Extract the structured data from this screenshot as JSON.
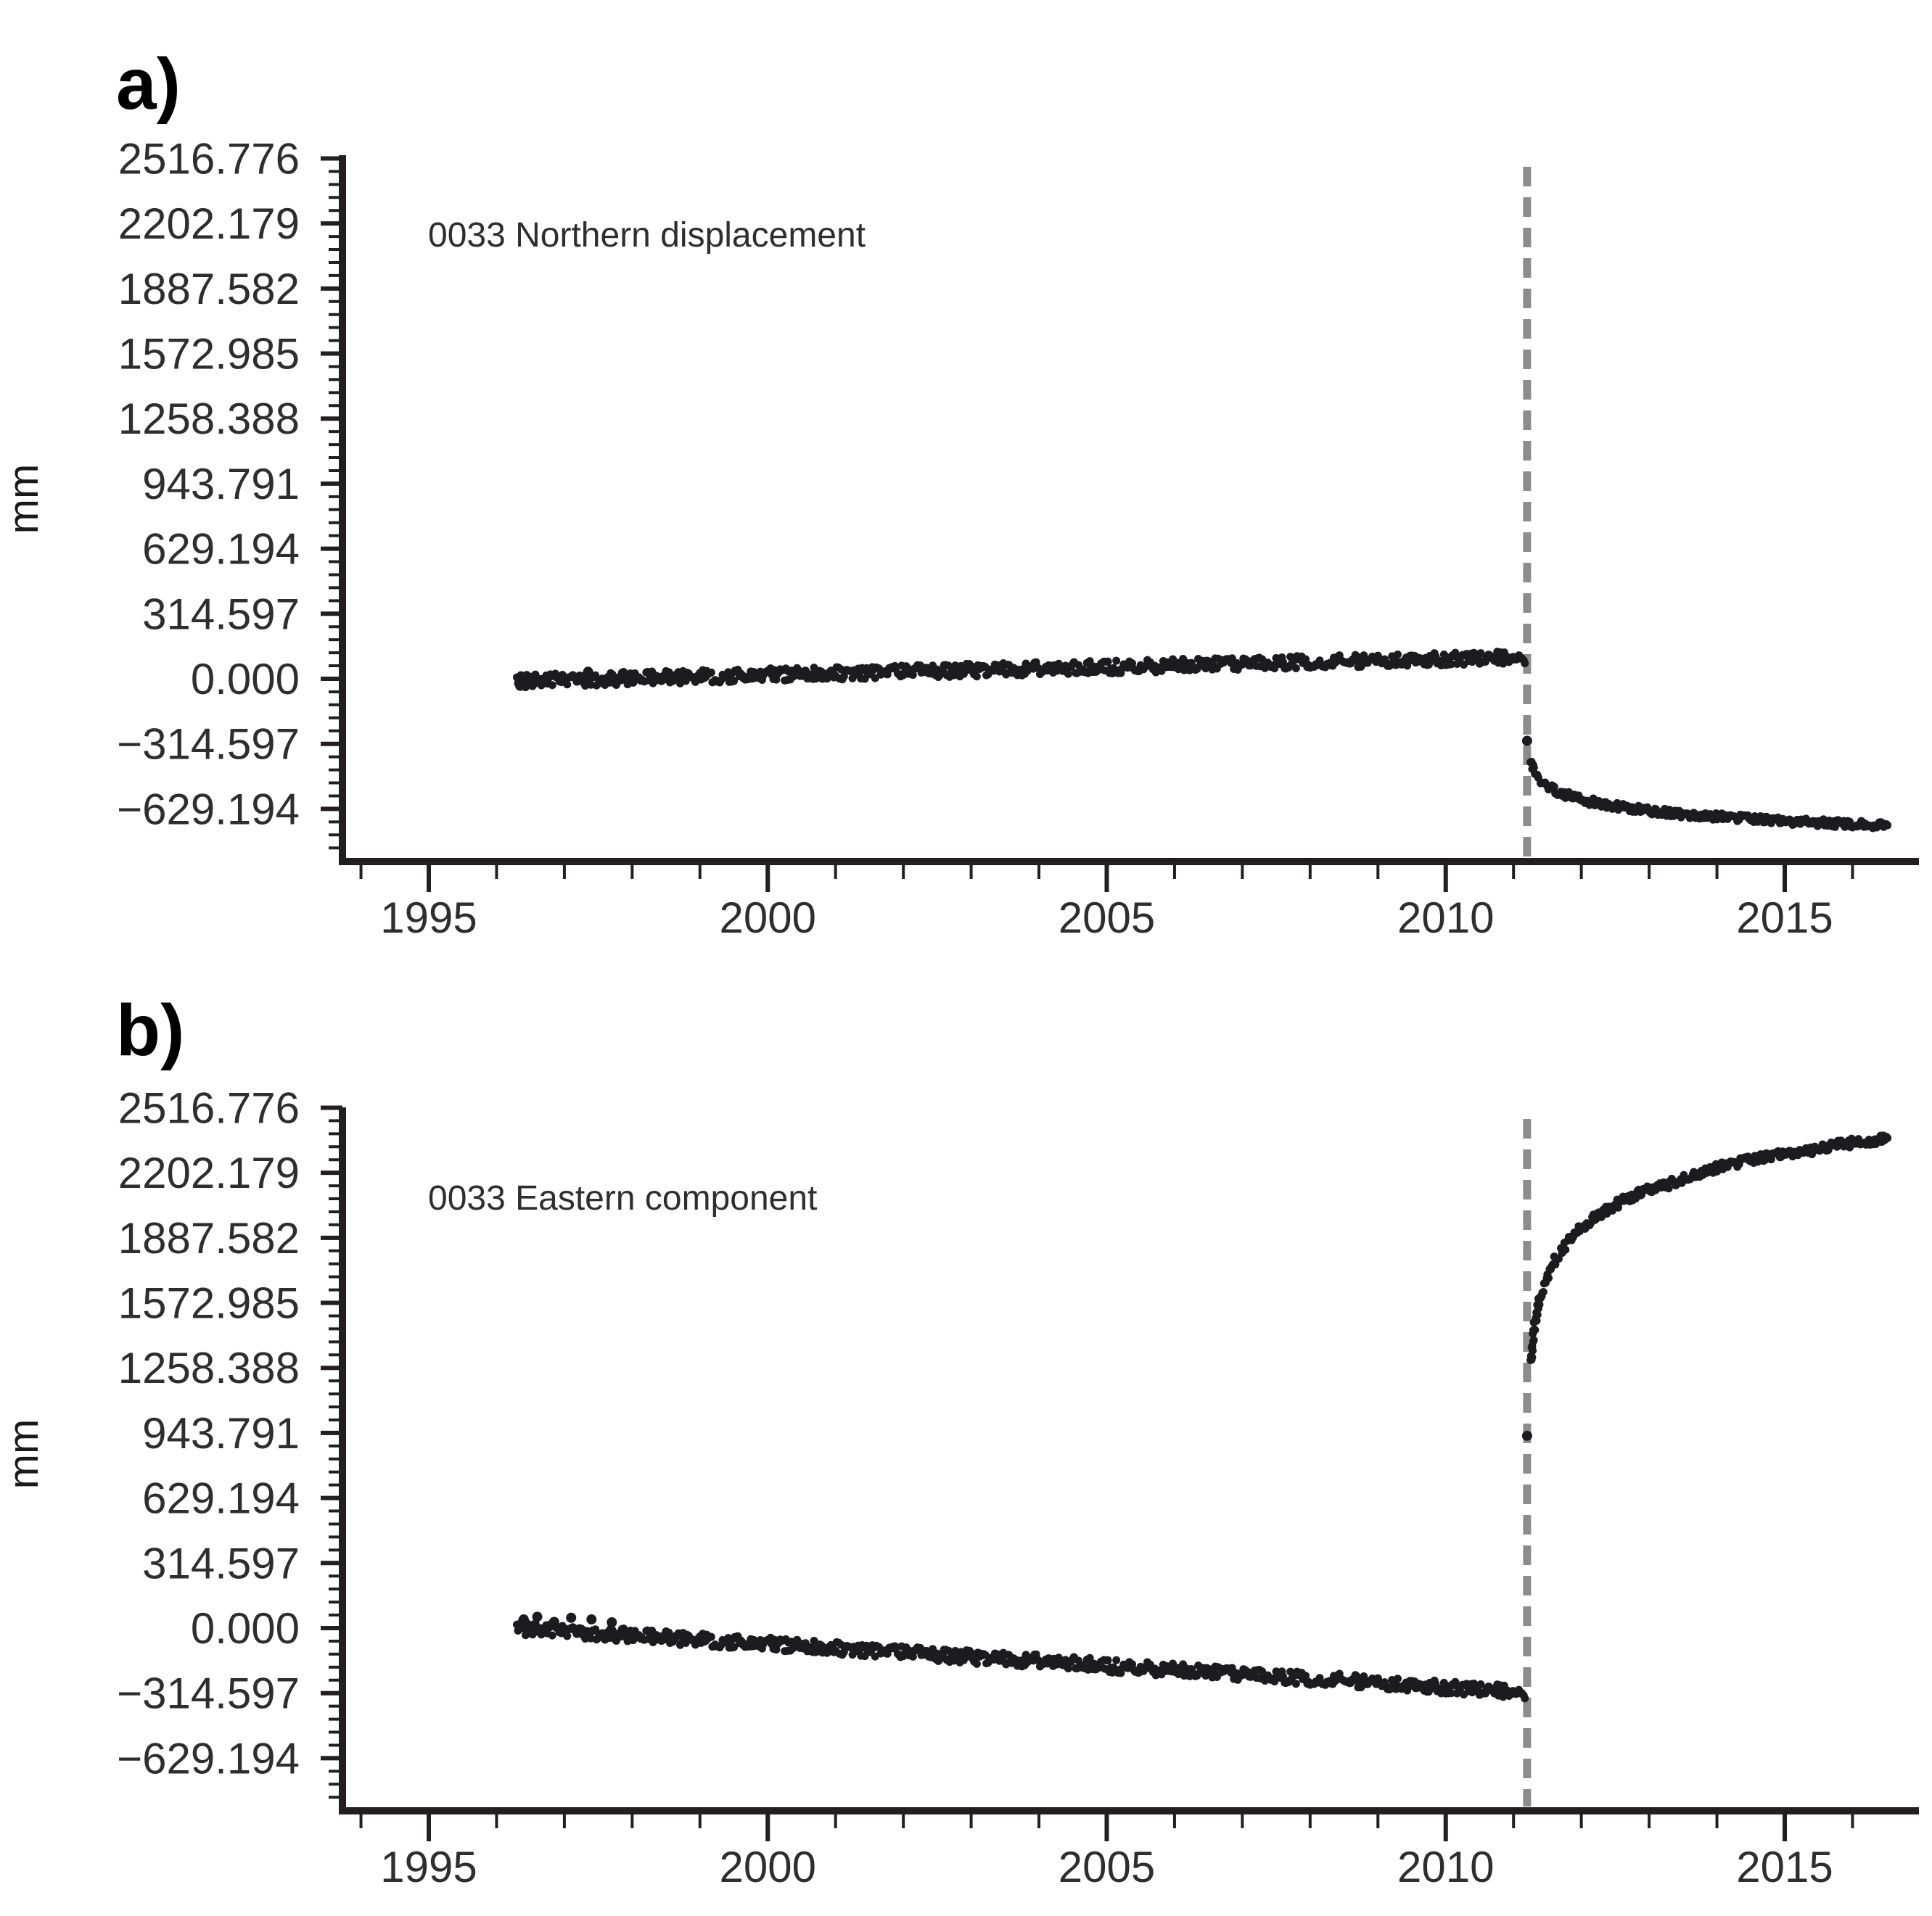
{
  "figure": {
    "background": "#ffffff"
  },
  "chart_data": [
    {
      "panel_label": "a)",
      "type": "scatter",
      "title": "0033 Northern displacement",
      "ylabel": "mm",
      "xlabel": "",
      "marker": "filled-circle",
      "point_color": "#1c1b1f",
      "axis_color": "#231f20",
      "text_color": "#2e2e2e",
      "grid": false,
      "legend": false,
      "xlim": [
        1993.6,
        2017.0
      ],
      "ylim": [
        -890,
        2550
      ],
      "x_ticks_major": [
        1995,
        2000,
        2005,
        2010,
        2015
      ],
      "x_minor_tick_range": [
        1994,
        2017
      ],
      "x_minor_step": 1,
      "y_ticks_major": [
        2516.776,
        2202.179,
        1887.582,
        1572.985,
        1258.388,
        943.791,
        629.194,
        314.597,
        0.0,
        -314.597,
        -629.194
      ],
      "y_tick_labels": [
        "2516.776",
        "2202.179",
        "1887.582",
        "1572.985",
        "1258.388",
        "943.791",
        "629.194",
        "314.597",
        "0.000",
        "−314.597",
        "−629.194"
      ],
      "y_minor_step": 62.9194,
      "event_line": {
        "year": 2011.2,
        "style": "dashed",
        "color": "#8c8c8c"
      },
      "series": [
        {
          "name": "pre-seismic-trend",
          "render": "band",
          "jitter": 9,
          "points": [
            [
              1996.3,
              -10
            ],
            [
              1996.6,
              -8
            ],
            [
              1997.0,
              -5
            ],
            [
              1997.5,
              -1
            ],
            [
              1998.0,
              3
            ],
            [
              1998.5,
              7
            ],
            [
              1999.0,
              11
            ],
            [
              1999.5,
              15
            ],
            [
              2000.0,
              19
            ],
            [
              2000.5,
              23
            ],
            [
              2001.0,
              26
            ],
            [
              2001.5,
              30
            ],
            [
              2002.0,
              34
            ],
            [
              2002.5,
              38
            ],
            [
              2003.0,
              42
            ],
            [
              2003.5,
              46
            ],
            [
              2004.0,
              50
            ],
            [
              2004.5,
              53
            ],
            [
              2005.0,
              57
            ],
            [
              2005.5,
              61
            ],
            [
              2006.0,
              65
            ],
            [
              2006.5,
              69
            ],
            [
              2007.0,
              73
            ],
            [
              2007.5,
              76
            ],
            [
              2008.0,
              80
            ],
            [
              2008.5,
              84
            ],
            [
              2009.0,
              88
            ],
            [
              2009.5,
              92
            ],
            [
              2010.0,
              96
            ],
            [
              2010.5,
              100
            ],
            [
              2011.15,
              105
            ]
          ]
        },
        {
          "name": "early-scatter",
          "render": "dots",
          "points": [
            [
              1996.35,
              -34
            ],
            [
              1997.35,
              34
            ]
          ]
        },
        {
          "name": "coseismic-outlier",
          "render": "dots",
          "points": [
            [
              2011.2,
              -300
            ]
          ]
        },
        {
          "name": "post-seismic-decay",
          "render": "band",
          "jitter": 5,
          "points": [
            [
              2011.25,
              -400
            ],
            [
              2011.3,
              -446
            ],
            [
              2011.35,
              -473
            ],
            [
              2011.4,
              -492
            ],
            [
              2011.5,
              -519
            ],
            [
              2011.6,
              -538
            ],
            [
              2011.7,
              -553
            ],
            [
              2011.8,
              -565
            ],
            [
              2012.0,
              -584
            ],
            [
              2012.2,
              -599
            ],
            [
              2012.4,
              -611
            ],
            [
              2012.7,
              -626
            ],
            [
              2013.0,
              -638
            ],
            [
              2013.3,
              -648
            ],
            [
              2013.6,
              -657
            ],
            [
              2013.9,
              -665
            ],
            [
              2014.2,
              -672
            ],
            [
              2014.5,
              -678
            ],
            [
              2014.8,
              -684
            ],
            [
              2015.1,
              -689
            ],
            [
              2015.4,
              -694
            ],
            [
              2015.7,
              -699
            ],
            [
              2016.0,
              -703
            ],
            [
              2016.3,
              -707
            ],
            [
              2016.5,
              -710
            ]
          ]
        }
      ]
    },
    {
      "panel_label": "b)",
      "type": "scatter",
      "title": "0033 Eastern component",
      "ylabel": "mm",
      "xlabel": "",
      "marker": "filled-circle",
      "point_color": "#1c1b1f",
      "axis_color": "#231f20",
      "text_color": "#2e2e2e",
      "grid": false,
      "legend": false,
      "xlim": [
        1993.6,
        2017.0
      ],
      "ylim": [
        -890,
        2550
      ],
      "x_ticks_major": [
        1995,
        2000,
        2005,
        2010,
        2015
      ],
      "x_minor_tick_range": [
        1994,
        2017
      ],
      "x_minor_step": 1,
      "y_ticks_major": [
        2516.776,
        2202.179,
        1887.582,
        1572.985,
        1258.388,
        943.791,
        629.194,
        314.597,
        0.0,
        -314.597,
        -629.194
      ],
      "y_tick_labels": [
        "2516.776",
        "2202.179",
        "1887.582",
        "1572.985",
        "1258.388",
        "943.791",
        "629.194",
        "314.597",
        "0.000",
        "−314.597",
        "−629.194"
      ],
      "y_minor_step": 62.9194,
      "event_line": {
        "year": 2011.2,
        "style": "dashed",
        "color": "#8c8c8c"
      },
      "series": [
        {
          "name": "pre-seismic-trend",
          "render": "band",
          "jitter": 9,
          "points": [
            [
              1996.3,
              0
            ],
            [
              1996.6,
              -6
            ],
            [
              1997.0,
              -15
            ],
            [
              1997.5,
              -25
            ],
            [
              1998.0,
              -36
            ],
            [
              1998.5,
              -46
            ],
            [
              1999.0,
              -57
            ],
            [
              1999.5,
              -67
            ],
            [
              2000.0,
              -77
            ],
            [
              2000.5,
              -88
            ],
            [
              2001.0,
              -98
            ],
            [
              2001.5,
              -108
            ],
            [
              2002.0,
              -119
            ],
            [
              2002.5,
              -130
            ],
            [
              2003.0,
              -140
            ],
            [
              2003.5,
              -150
            ],
            [
              2004.0,
              -158
            ],
            [
              2004.5,
              -168
            ],
            [
              2005.0,
              -182
            ],
            [
              2005.5,
              -192
            ],
            [
              2006.0,
              -203
            ],
            [
              2006.5,
              -213
            ],
            [
              2007.0,
              -224
            ],
            [
              2007.5,
              -234
            ],
            [
              2008.0,
              -248
            ],
            [
              2008.5,
              -252
            ],
            [
              2009.0,
              -266
            ],
            [
              2009.5,
              -276
            ],
            [
              2010.0,
              -287
            ],
            [
              2010.5,
              -296
            ],
            [
              2011.15,
              -310
            ]
          ]
        },
        {
          "name": "early-scatter",
          "render": "dots",
          "points": [
            [
              1996.4,
              42
            ],
            [
              1996.6,
              55
            ],
            [
              1996.85,
              30
            ],
            [
              1997.1,
              50
            ],
            [
              1997.4,
              42
            ],
            [
              1997.7,
              28
            ]
          ]
        },
        {
          "name": "coseismic-outlier",
          "render": "dots",
          "points": [
            [
              2011.2,
              930
            ]
          ]
        },
        {
          "name": "post-seismic-rise",
          "render": "band",
          "jitter": 6,
          "points": [
            [
              2011.25,
              1300
            ],
            [
              2011.3,
              1459
            ],
            [
              2011.35,
              1553
            ],
            [
              2011.4,
              1619
            ],
            [
              2011.5,
              1712
            ],
            [
              2011.6,
              1778
            ],
            [
              2011.7,
              1830
            ],
            [
              2011.8,
              1872
            ],
            [
              2012.0,
              1938
            ],
            [
              2012.2,
              1989
            ],
            [
              2012.4,
              2031
            ],
            [
              2012.7,
              2082
            ],
            [
              2013.0,
              2124
            ],
            [
              2013.2,
              2135
            ],
            [
              2013.6,
              2190
            ],
            [
              2013.9,
              2217
            ],
            [
              2014.2,
              2242
            ],
            [
              2014.5,
              2264
            ],
            [
              2014.8,
              2284
            ],
            [
              2015.1,
              2302
            ],
            [
              2015.3,
              2300
            ],
            [
              2015.6,
              2330
            ],
            [
              2015.9,
              2344
            ],
            [
              2016.2,
              2356
            ],
            [
              2016.5,
              2368
            ]
          ]
        }
      ]
    }
  ]
}
